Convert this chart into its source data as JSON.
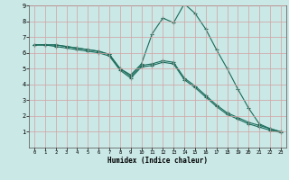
{
  "xlabel": "Humidex (Indice chaleur)",
  "ylabel": "",
  "bg_color": "#c9e8e6",
  "line_color": "#1a6b5a",
  "grid_color": "#d4a0a0",
  "xlim": [
    -0.5,
    23.5
  ],
  "ylim": [
    0,
    9
  ],
  "xticks": [
    0,
    1,
    2,
    3,
    4,
    5,
    6,
    7,
    8,
    9,
    10,
    11,
    12,
    13,
    14,
    15,
    16,
    17,
    18,
    19,
    20,
    21,
    22,
    23
  ],
  "yticks": [
    1,
    2,
    3,
    4,
    5,
    6,
    7,
    8,
    9
  ],
  "lines": [
    {
      "x": [
        0,
        1,
        2,
        3,
        4,
        5,
        6,
        7,
        8,
        9,
        10,
        11,
        12,
        13,
        14,
        15,
        16,
        17,
        18,
        19,
        20,
        21,
        22,
        23
      ],
      "y": [
        6.5,
        6.5,
        6.5,
        6.4,
        6.3,
        6.2,
        6.1,
        5.9,
        5.0,
        4.6,
        5.3,
        7.2,
        8.2,
        7.9,
        9.1,
        8.5,
        7.5,
        6.2,
        5.0,
        3.7,
        2.5,
        1.5,
        1.2,
        1.0
      ]
    },
    {
      "x": [
        0,
        1,
        2,
        3,
        4,
        5,
        6,
        7,
        8,
        9,
        10,
        11,
        12,
        13,
        14,
        15,
        16,
        17,
        18,
        19,
        20,
        21,
        22,
        23
      ],
      "y": [
        6.5,
        6.5,
        6.5,
        6.4,
        6.3,
        6.2,
        6.1,
        5.9,
        5.0,
        4.5,
        5.2,
        5.3,
        5.5,
        5.4,
        4.4,
        3.9,
        3.3,
        2.7,
        2.2,
        1.9,
        1.6,
        1.4,
        1.2,
        1.0
      ]
    },
    {
      "x": [
        0,
        1,
        2,
        3,
        4,
        5,
        6,
        7,
        8,
        9,
        10,
        11,
        12,
        13,
        14,
        15,
        16,
        17,
        18,
        19,
        20,
        21,
        22,
        23
      ],
      "y": [
        6.5,
        6.5,
        6.4,
        6.3,
        6.2,
        6.1,
        6.0,
        5.8,
        4.9,
        4.4,
        5.1,
        5.2,
        5.4,
        5.3,
        4.3,
        3.8,
        3.2,
        2.6,
        2.1,
        1.8,
        1.5,
        1.3,
        1.1,
        0.95
      ]
    }
  ]
}
